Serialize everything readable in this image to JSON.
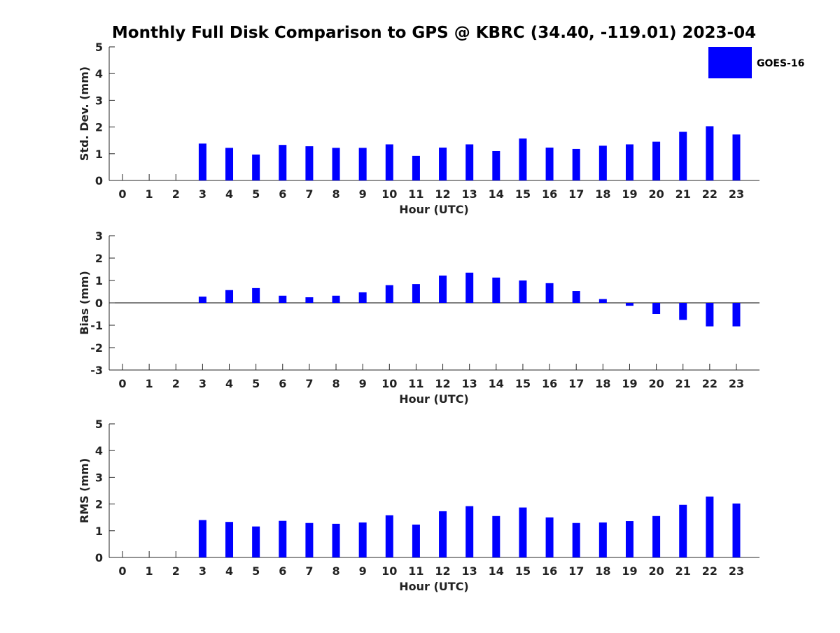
{
  "chart_data": {
    "type": "bar",
    "title": "Monthly Full Disk Comparison to GPS @ KBRC (34.40, -119.01) 2023-04",
    "legend": {
      "entries": [
        "GOES-16"
      ],
      "placement": "top-right"
    },
    "bar_color": "#0000ff",
    "grid": false,
    "panels": [
      {
        "type": "bar",
        "xlabel": "Hour (UTC)",
        "ylabel": "Std. Dev. (mm)",
        "ylim": [
          0,
          5
        ],
        "yticks": [
          "0",
          "1",
          "2",
          "3",
          "4",
          "5"
        ],
        "categories": [
          "0",
          "1",
          "2",
          "3",
          "4",
          "5",
          "6",
          "7",
          "8",
          "9",
          "10",
          "11",
          "12",
          "13",
          "14",
          "15",
          "16",
          "17",
          "18",
          "19",
          "20",
          "21",
          "22",
          "23"
        ],
        "series": [
          {
            "name": "GOES-16",
            "values": [
              null,
              null,
              null,
              1.38,
              1.22,
              0.97,
              1.33,
              1.28,
              1.22,
              1.22,
              1.35,
              0.92,
              1.23,
              1.35,
              1.1,
              1.57,
              1.23,
              1.18,
              1.3,
              1.35,
              1.45,
              1.82,
              2.03,
              1.72
            ]
          }
        ]
      },
      {
        "type": "bar",
        "xlabel": "Hour (UTC)",
        "ylabel": "Bias (mm)",
        "ylim": [
          -3,
          3
        ],
        "yticks": [
          "-3",
          "-2",
          "-1",
          "0",
          "1",
          "2",
          "3"
        ],
        "categories": [
          "0",
          "1",
          "2",
          "3",
          "4",
          "5",
          "6",
          "7",
          "8",
          "9",
          "10",
          "11",
          "12",
          "13",
          "14",
          "15",
          "16",
          "17",
          "18",
          "19",
          "20",
          "21",
          "22",
          "23"
        ],
        "series": [
          {
            "name": "GOES-16",
            "values": [
              null,
              null,
              null,
              0.28,
              0.57,
              0.66,
              0.32,
              0.25,
              0.32,
              0.47,
              0.79,
              0.84,
              1.22,
              1.35,
              1.13,
              1.0,
              0.88,
              0.53,
              0.17,
              -0.13,
              -0.5,
              -0.76,
              -1.05,
              -1.05
            ]
          }
        ]
      },
      {
        "type": "bar",
        "xlabel": "Hour (UTC)",
        "ylabel": "RMS (mm)",
        "ylim": [
          0,
          5
        ],
        "yticks": [
          "0",
          "1",
          "2",
          "3",
          "4",
          "5"
        ],
        "categories": [
          "0",
          "1",
          "2",
          "3",
          "4",
          "5",
          "6",
          "7",
          "8",
          "9",
          "10",
          "11",
          "12",
          "13",
          "14",
          "15",
          "16",
          "17",
          "18",
          "19",
          "20",
          "21",
          "22",
          "23"
        ],
        "series": [
          {
            "name": "GOES-16",
            "values": [
              null,
              null,
              null,
              1.4,
              1.33,
              1.16,
              1.37,
              1.29,
              1.26,
              1.31,
              1.58,
              1.23,
              1.73,
              1.92,
              1.55,
              1.87,
              1.5,
              1.29,
              1.31,
              1.36,
              1.55,
              1.97,
              2.28,
              2.02
            ]
          }
        ]
      }
    ]
  }
}
